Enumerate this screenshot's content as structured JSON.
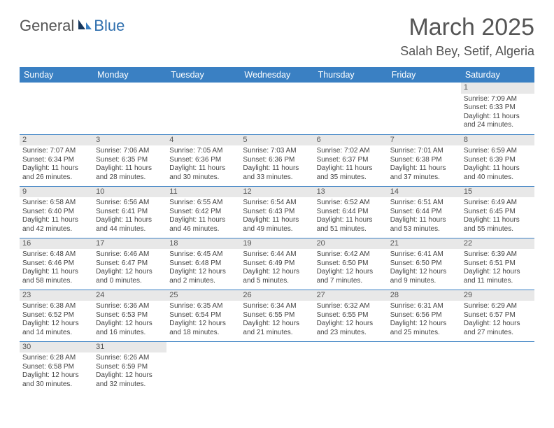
{
  "logo": {
    "text1": "General",
    "text2": "Blue"
  },
  "title": "March 2025",
  "location": "Salah Bey, Setif, Algeria",
  "colors": {
    "header_bg": "#3a80c3",
    "header_text": "#ffffff",
    "daynum_bg": "#e8e8e8",
    "border": "#3a80c3",
    "text": "#444444",
    "logo_blue": "#2f6fae",
    "logo_gray": "#555555"
  },
  "dayNames": [
    "Sunday",
    "Monday",
    "Tuesday",
    "Wednesday",
    "Thursday",
    "Friday",
    "Saturday"
  ],
  "weeks": [
    [
      null,
      null,
      null,
      null,
      null,
      null,
      {
        "n": "1",
        "sr": "Sunrise: 7:09 AM",
        "ss": "Sunset: 6:33 PM",
        "dl": "Daylight: 11 hours and 24 minutes."
      }
    ],
    [
      {
        "n": "2",
        "sr": "Sunrise: 7:07 AM",
        "ss": "Sunset: 6:34 PM",
        "dl": "Daylight: 11 hours and 26 minutes."
      },
      {
        "n": "3",
        "sr": "Sunrise: 7:06 AM",
        "ss": "Sunset: 6:35 PM",
        "dl": "Daylight: 11 hours and 28 minutes."
      },
      {
        "n": "4",
        "sr": "Sunrise: 7:05 AM",
        "ss": "Sunset: 6:36 PM",
        "dl": "Daylight: 11 hours and 30 minutes."
      },
      {
        "n": "5",
        "sr": "Sunrise: 7:03 AM",
        "ss": "Sunset: 6:36 PM",
        "dl": "Daylight: 11 hours and 33 minutes."
      },
      {
        "n": "6",
        "sr": "Sunrise: 7:02 AM",
        "ss": "Sunset: 6:37 PM",
        "dl": "Daylight: 11 hours and 35 minutes."
      },
      {
        "n": "7",
        "sr": "Sunrise: 7:01 AM",
        "ss": "Sunset: 6:38 PM",
        "dl": "Daylight: 11 hours and 37 minutes."
      },
      {
        "n": "8",
        "sr": "Sunrise: 6:59 AM",
        "ss": "Sunset: 6:39 PM",
        "dl": "Daylight: 11 hours and 40 minutes."
      }
    ],
    [
      {
        "n": "9",
        "sr": "Sunrise: 6:58 AM",
        "ss": "Sunset: 6:40 PM",
        "dl": "Daylight: 11 hours and 42 minutes."
      },
      {
        "n": "10",
        "sr": "Sunrise: 6:56 AM",
        "ss": "Sunset: 6:41 PM",
        "dl": "Daylight: 11 hours and 44 minutes."
      },
      {
        "n": "11",
        "sr": "Sunrise: 6:55 AM",
        "ss": "Sunset: 6:42 PM",
        "dl": "Daylight: 11 hours and 46 minutes."
      },
      {
        "n": "12",
        "sr": "Sunrise: 6:54 AM",
        "ss": "Sunset: 6:43 PM",
        "dl": "Daylight: 11 hours and 49 minutes."
      },
      {
        "n": "13",
        "sr": "Sunrise: 6:52 AM",
        "ss": "Sunset: 6:44 PM",
        "dl": "Daylight: 11 hours and 51 minutes."
      },
      {
        "n": "14",
        "sr": "Sunrise: 6:51 AM",
        "ss": "Sunset: 6:44 PM",
        "dl": "Daylight: 11 hours and 53 minutes."
      },
      {
        "n": "15",
        "sr": "Sunrise: 6:49 AM",
        "ss": "Sunset: 6:45 PM",
        "dl": "Daylight: 11 hours and 55 minutes."
      }
    ],
    [
      {
        "n": "16",
        "sr": "Sunrise: 6:48 AM",
        "ss": "Sunset: 6:46 PM",
        "dl": "Daylight: 11 hours and 58 minutes."
      },
      {
        "n": "17",
        "sr": "Sunrise: 6:46 AM",
        "ss": "Sunset: 6:47 PM",
        "dl": "Daylight: 12 hours and 0 minutes."
      },
      {
        "n": "18",
        "sr": "Sunrise: 6:45 AM",
        "ss": "Sunset: 6:48 PM",
        "dl": "Daylight: 12 hours and 2 minutes."
      },
      {
        "n": "19",
        "sr": "Sunrise: 6:44 AM",
        "ss": "Sunset: 6:49 PM",
        "dl": "Daylight: 12 hours and 5 minutes."
      },
      {
        "n": "20",
        "sr": "Sunrise: 6:42 AM",
        "ss": "Sunset: 6:50 PM",
        "dl": "Daylight: 12 hours and 7 minutes."
      },
      {
        "n": "21",
        "sr": "Sunrise: 6:41 AM",
        "ss": "Sunset: 6:50 PM",
        "dl": "Daylight: 12 hours and 9 minutes."
      },
      {
        "n": "22",
        "sr": "Sunrise: 6:39 AM",
        "ss": "Sunset: 6:51 PM",
        "dl": "Daylight: 12 hours and 11 minutes."
      }
    ],
    [
      {
        "n": "23",
        "sr": "Sunrise: 6:38 AM",
        "ss": "Sunset: 6:52 PM",
        "dl": "Daylight: 12 hours and 14 minutes."
      },
      {
        "n": "24",
        "sr": "Sunrise: 6:36 AM",
        "ss": "Sunset: 6:53 PM",
        "dl": "Daylight: 12 hours and 16 minutes."
      },
      {
        "n": "25",
        "sr": "Sunrise: 6:35 AM",
        "ss": "Sunset: 6:54 PM",
        "dl": "Daylight: 12 hours and 18 minutes."
      },
      {
        "n": "26",
        "sr": "Sunrise: 6:34 AM",
        "ss": "Sunset: 6:55 PM",
        "dl": "Daylight: 12 hours and 21 minutes."
      },
      {
        "n": "27",
        "sr": "Sunrise: 6:32 AM",
        "ss": "Sunset: 6:55 PM",
        "dl": "Daylight: 12 hours and 23 minutes."
      },
      {
        "n": "28",
        "sr": "Sunrise: 6:31 AM",
        "ss": "Sunset: 6:56 PM",
        "dl": "Daylight: 12 hours and 25 minutes."
      },
      {
        "n": "29",
        "sr": "Sunrise: 6:29 AM",
        "ss": "Sunset: 6:57 PM",
        "dl": "Daylight: 12 hours and 27 minutes."
      }
    ],
    [
      {
        "n": "30",
        "sr": "Sunrise: 6:28 AM",
        "ss": "Sunset: 6:58 PM",
        "dl": "Daylight: 12 hours and 30 minutes."
      },
      {
        "n": "31",
        "sr": "Sunrise: 6:26 AM",
        "ss": "Sunset: 6:59 PM",
        "dl": "Daylight: 12 hours and 32 minutes."
      },
      null,
      null,
      null,
      null,
      null
    ]
  ]
}
